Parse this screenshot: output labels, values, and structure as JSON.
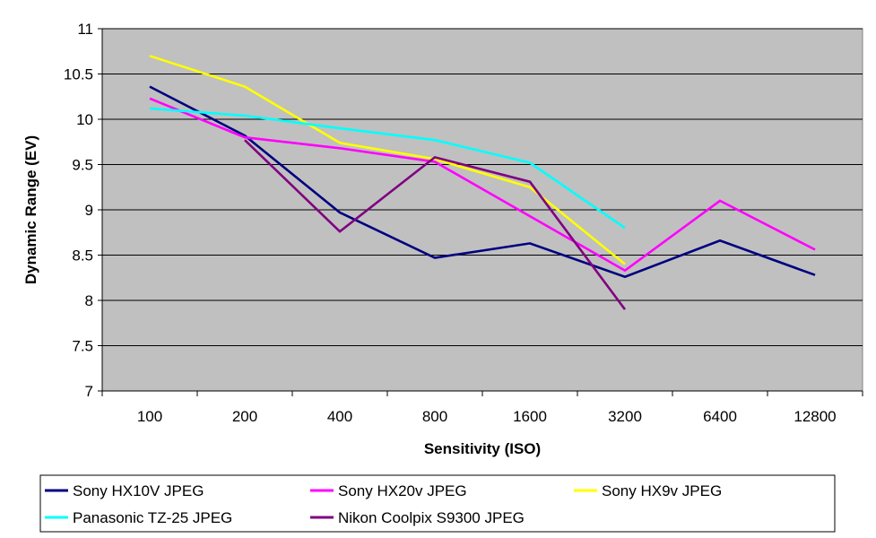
{
  "chart_data": {
    "type": "line",
    "xlabel": "Sensitivity (ISO)",
    "ylabel": "Dynamic Range (EV)",
    "categories": [
      "100",
      "200",
      "400",
      "800",
      "1600",
      "3200",
      "6400",
      "12800"
    ],
    "ylim": [
      7,
      11
    ],
    "yticks": [
      "7",
      "7.5",
      "8",
      "8.5",
      "9",
      "9.5",
      "10",
      "10.5",
      "11"
    ],
    "grid": true,
    "legend_position": "bottom",
    "plot_background": "#c0c0c0",
    "series": [
      {
        "name": "Sony HX10V JPEG",
        "color": "#000080",
        "values": [
          10.36,
          9.82,
          8.97,
          8.47,
          8.63,
          8.26,
          8.66,
          8.28
        ]
      },
      {
        "name": "Sony HX20v JPEG",
        "color": "#ff00ff",
        "values": [
          10.23,
          9.8,
          9.68,
          9.53,
          8.93,
          8.33,
          9.1,
          8.56
        ]
      },
      {
        "name": "Sony HX9v JPEG",
        "color": "#ffff00",
        "values": [
          10.7,
          10.36,
          9.74,
          9.56,
          9.25,
          8.4,
          null,
          null
        ]
      },
      {
        "name": "Panasonic TZ-25 JPEG",
        "color": "#00ffff",
        "values": [
          10.12,
          10.04,
          9.9,
          9.77,
          9.52,
          8.8,
          null,
          null
        ]
      },
      {
        "name": "Nikon Coolpix S9300 JPEG",
        "color": "#800080",
        "values": [
          null,
          9.77,
          8.76,
          9.58,
          9.31,
          7.9,
          null,
          null
        ]
      }
    ]
  }
}
